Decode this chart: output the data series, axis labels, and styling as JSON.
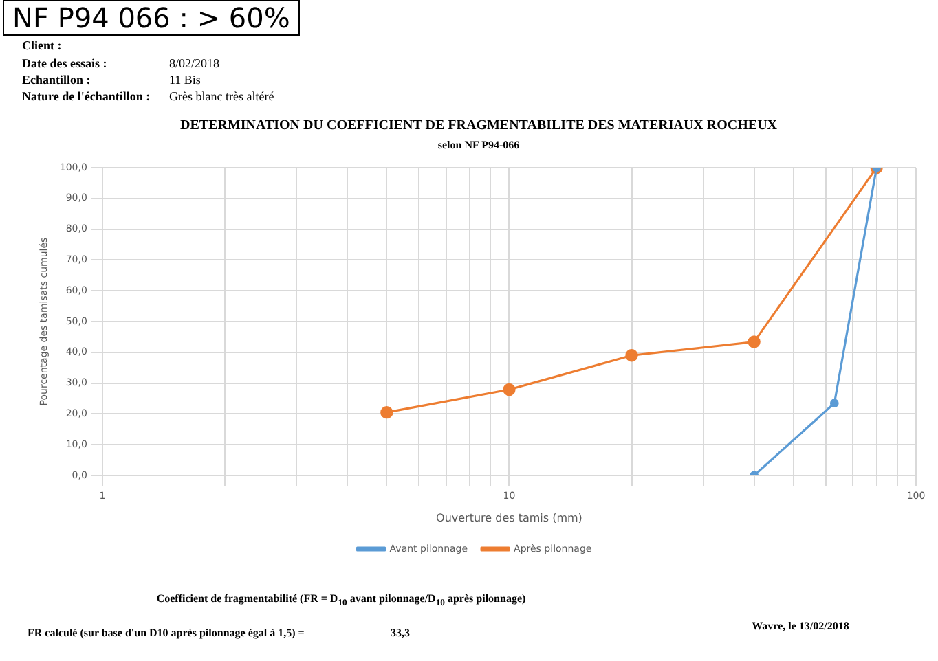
{
  "chart_data": {
    "type": "line",
    "title": "DETERMINATION DU COEFFICIENT DE FRAGMENTABILITE DES MATERIAUX ROCHEUX",
    "subtitle": "selon NF P94-066",
    "xlabel": "Ouverture des tamis (mm)",
    "ylabel": "Pourcentage des tamisats cumulés",
    "annotations": [
      "NF P94 066 : > 60%",
      "Client :",
      "Date des essais :",
      "8/02/2018",
      "Echantillon :",
      "11 Bis",
      "Nature de l'échantillon :",
      "Grès blanc très altéré",
      "Coefficient de fragmentabilité (FR = D$_{10}$ avant pilonnage/D$_{10}$ après pilonnage)",
      "FR calculé (sur base d'un D10 après pilonnage égal à 1,5) =",
      "33,3",
      "Wavre, le 13/02/2018"
    ],
    "series": [
      {
        "name": "Avant pilonnage",
        "color": "#5b9bd5",
        "x": [
          40,
          63,
          80
        ],
        "values": [
          0,
          23.5,
          100
        ]
      },
      {
        "name": "Après pilonnage",
        "color": "#ed7d31",
        "x": [
          5,
          10,
          20,
          40,
          80
        ],
        "values": [
          20.5,
          27.9,
          39,
          43.4,
          100
        ]
      }
    ],
    "log": "x",
    "xlim": [
      1,
      100
    ],
    "xticks": [
      1,
      {
        "value": 2,
        "label": null
      },
      {
        "value": 3,
        "label": null
      },
      {
        "value": 4,
        "label": null
      },
      {
        "value": 5,
        "label": null
      },
      {
        "value": 6,
        "label": null
      },
      {
        "value": 7,
        "label": null
      },
      {
        "value": 8,
        "label": null
      },
      {
        "value": 9,
        "label": null
      },
      10,
      {
        "value": 20,
        "label": null
      },
      {
        "value": 30,
        "label": null
      },
      {
        "value": 40,
        "label": null
      },
      {
        "value": 50,
        "label": null
      },
      {
        "value": 60,
        "label": null
      },
      {
        "value": 70,
        "label": null
      },
      {
        "value": 80,
        "label": null
      },
      {
        "value": 90,
        "label": null
      },
      100
    ],
    "ylim": [
      0,
      100
    ],
    "yticks": [
      {
        "value": 0,
        "label": "0,0"
      },
      {
        "value": 10,
        "label": "10,0"
      },
      {
        "value": 20,
        "label": "20,0"
      },
      {
        "value": 30,
        "label": "30,0"
      },
      {
        "value": 40,
        "label": "40,0"
      },
      {
        "value": 50,
        "label": "50,0"
      },
      {
        "value": 60,
        "label": "60,0"
      },
      {
        "value": 70,
        "label": "70,0"
      },
      {
        "value": 80,
        "label": "80,0"
      },
      {
        "value": 90,
        "label": "90,0"
      },
      {
        "value": 100,
        "label": "100,0"
      }
    ],
    "grid": true,
    "legend": "bottom",
    "marker": "circle",
    "line_style": "solid"
  }
}
